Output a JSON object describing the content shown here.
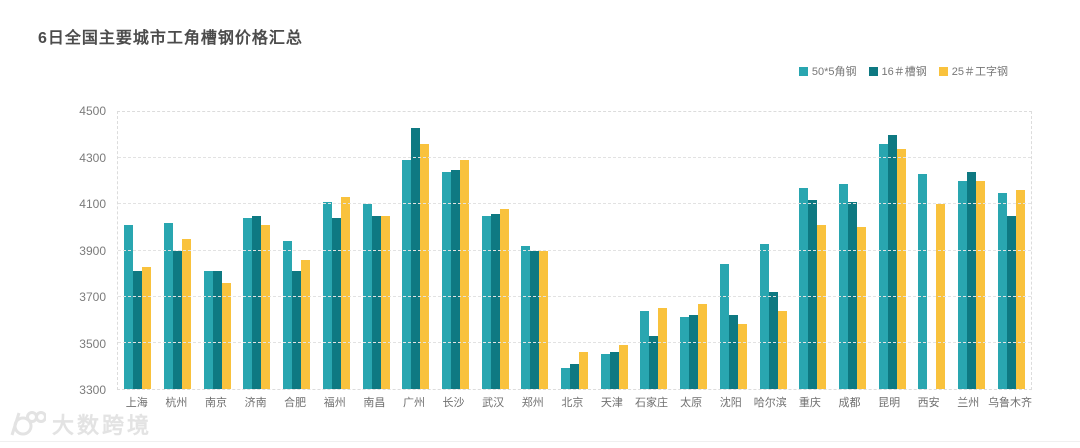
{
  "page": {
    "watermark_text": "大数跨境"
  },
  "chart_data": {
    "type": "bar",
    "title": "6日全国主要城市工角槽钢价格汇总",
    "title_color": "#4c4c4c",
    "categories": [
      "上海",
      "杭州",
      "南京",
      "济南",
      "合肥",
      "福州",
      "南昌",
      "广州",
      "长沙",
      "武汉",
      "郑州",
      "北京",
      "天津",
      "石家庄",
      "太原",
      "沈阳",
      "哈尔滨",
      "重庆",
      "成都",
      "昆明",
      "西安",
      "兰州",
      "乌鲁木齐"
    ],
    "series": [
      {
        "name": "50*5角钢",
        "color": "#29a6b0",
        "values": [
          4010,
          4020,
          3810,
          4040,
          3940,
          4110,
          4100,
          4290,
          4240,
          4050,
          3920,
          3390,
          3450,
          3640,
          3610,
          3840,
          3930,
          4170,
          4190,
          4360,
          4230,
          4200,
          4150
        ]
      },
      {
        "name": "16＃槽钢",
        "color": "#0e7982",
        "values": [
          3810,
          3900,
          3810,
          4050,
          3810,
          4040,
          4050,
          4430,
          4250,
          4060,
          3900,
          3410,
          3460,
          3530,
          3620,
          3620,
          3720,
          4120,
          4110,
          4400,
          null,
          4240,
          4050
        ]
      },
      {
        "name": "25＃工字钢",
        "color": "#f9c23d",
        "values": [
          3830,
          3950,
          3760,
          4010,
          3860,
          4130,
          4050,
          4360,
          4290,
          4080,
          3900,
          3460,
          3490,
          3650,
          3670,
          3580,
          3640,
          4010,
          4000,
          4340,
          4100,
          4200,
          4160
        ]
      }
    ],
    "ylim": [
      3300,
      4500
    ],
    "yticks": [
      3300,
      3500,
      3700,
      3900,
      4100,
      4300,
      4500
    ],
    "grid": true,
    "grid_line_style": "dashed",
    "legend_position": "top-right",
    "xlabel": "",
    "ylabel": ""
  }
}
